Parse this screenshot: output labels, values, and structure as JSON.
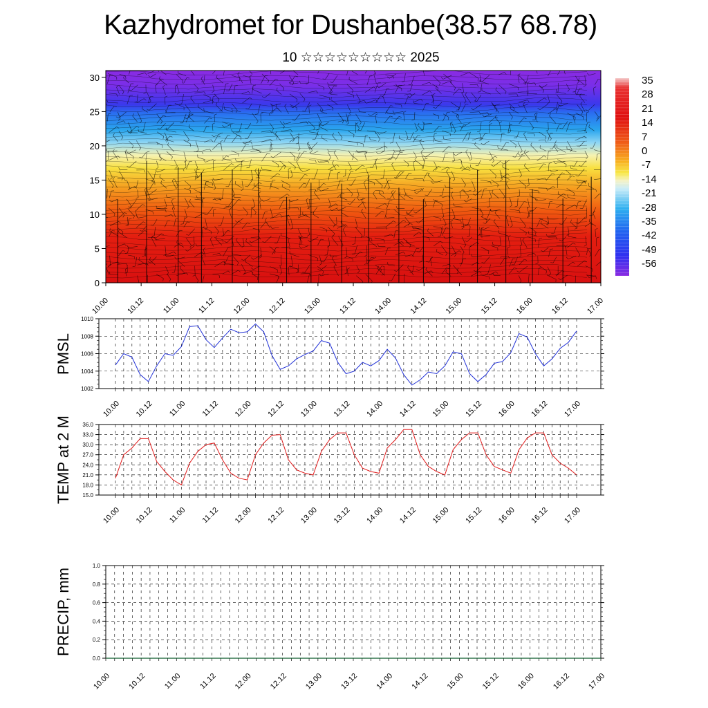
{
  "title": "Kazhydromet for Dushanbe(38.57 68.78)",
  "subtitle": "10 ☆☆☆☆☆☆☆☆☆ 2025",
  "colors": {
    "pmsl_line": "#1f2fd6",
    "temp_line": "#e01a1a",
    "precip_line": "#0a5a2a",
    "field_top": "#8a2be2",
    "field_bottom": "#d81010"
  },
  "chart_data": [
    {
      "type": "heatmap",
      "name": "upper-air temperature cross-section with wind barbs",
      "x_ticks": [
        "10.00",
        "10.12",
        "11.00",
        "11.12",
        "12.00",
        "12.12",
        "13.00",
        "13.12",
        "14.00",
        "14.12",
        "15.00",
        "15.12",
        "16.00",
        "16.12",
        "17.00"
      ],
      "y_ticks": [
        "0",
        "5",
        "10",
        "15",
        "20",
        "25",
        "30"
      ],
      "ylim": [
        0,
        31
      ],
      "colorbar_labels": [
        "35",
        "28",
        "21",
        "14",
        "7",
        "0",
        "-7",
        "-14",
        "-21",
        "-28",
        "-35",
        "-42",
        "-49",
        "-56"
      ],
      "vertical_profile_note_levels": [
        0,
        31
      ]
    },
    {
      "type": "line",
      "ylabel": "PMSL",
      "ylim": [
        1002,
        1010
      ],
      "y_ticks": [
        "1010",
        "1008",
        "1006",
        "1004",
        "1002"
      ],
      "x_ticks": [
        "10.00",
        "10.12",
        "11.00",
        "11.12",
        "12.00",
        "12.12",
        "13.00",
        "13.12",
        "14.00",
        "14.12",
        "15.00",
        "15.12",
        "16.00",
        "16.12",
        "17.00"
      ],
      "series": [
        {
          "values": [
            1004.7,
            1006.0,
            1005.6,
            1003.6,
            1002.8,
            1004.6,
            1006.0,
            1005.8,
            1006.8,
            1009.1,
            1009.2,
            1007.6,
            1006.7,
            1007.8,
            1008.8,
            1008.4,
            1008.5,
            1009.4,
            1008.5,
            1005.8,
            1004.2,
            1004.6,
            1005.4,
            1005.9,
            1006.3,
            1007.5,
            1007.2,
            1005.0,
            1003.7,
            1004.0,
            1005.0,
            1004.6,
            1005.2,
            1006.5,
            1005.5,
            1003.6,
            1002.4,
            1003.0,
            1003.9,
            1003.7,
            1004.6,
            1006.2,
            1006.0,
            1003.7,
            1002.8,
            1003.6,
            1004.9,
            1005.1,
            1006.1,
            1008.3,
            1007.9,
            1006.0,
            1004.6,
            1005.4,
            1006.6,
            1007.3,
            1008.6
          ]
        }
      ]
    },
    {
      "type": "line",
      "ylabel": "TEMP at 2 M",
      "ylim": [
        15,
        36
      ],
      "y_ticks": [
        "36.0",
        "33.0",
        "30.0",
        "27.0",
        "24.0",
        "21.0",
        "18.0",
        "15.0"
      ],
      "x_ticks": [
        "10.00",
        "10.12",
        "11.00",
        "11.12",
        "12.00",
        "12.12",
        "13.00",
        "13.12",
        "14.00",
        "14.12",
        "15.00",
        "15.12",
        "16.00",
        "16.12",
        "17.00"
      ],
      "series": [
        {
          "values": [
            20.0,
            27.0,
            29.0,
            31.8,
            31.8,
            25.0,
            22.0,
            19.5,
            18.0,
            24.5,
            28.0,
            30.0,
            30.5,
            25.5,
            21.5,
            20.0,
            19.5,
            27.0,
            30.5,
            32.8,
            33.0,
            25.5,
            22.5,
            21.5,
            21.0,
            28.0,
            31.5,
            33.5,
            33.5,
            27.0,
            23.0,
            22.0,
            21.5,
            29.0,
            31.5,
            34.5,
            34.5,
            27.0,
            23.5,
            22.0,
            21.0,
            28.5,
            31.5,
            33.5,
            33.5,
            27.0,
            23.5,
            22.5,
            21.5,
            28.5,
            32.0,
            33.5,
            33.5,
            27.0,
            24.5,
            23.0,
            21.0
          ]
        }
      ]
    },
    {
      "type": "line",
      "ylabel": "PRECIP, mm",
      "ylim": [
        0,
        1
      ],
      "y_ticks": [
        "1.0",
        "0.8",
        "0.6",
        "0.4",
        "0.2",
        "0.0"
      ],
      "x_ticks": [
        "10.00",
        "10.12",
        "11.00",
        "11.12",
        "12.00",
        "12.12",
        "13.00",
        "13.12",
        "14.00",
        "14.12",
        "15.00",
        "15.12",
        "16.00",
        "16.12",
        "17.00"
      ],
      "series": [
        {
          "values": [
            0,
            0,
            0,
            0,
            0,
            0,
            0,
            0,
            0,
            0,
            0,
            0,
            0,
            0,
            0,
            0,
            0,
            0,
            0,
            0,
            0,
            0,
            0,
            0,
            0,
            0,
            0,
            0,
            0,
            0,
            0,
            0,
            0,
            0,
            0,
            0,
            0,
            0,
            0,
            0,
            0,
            0,
            0,
            0,
            0,
            0,
            0,
            0,
            0,
            0,
            0,
            0,
            0,
            0,
            0,
            0,
            0
          ]
        }
      ]
    }
  ]
}
